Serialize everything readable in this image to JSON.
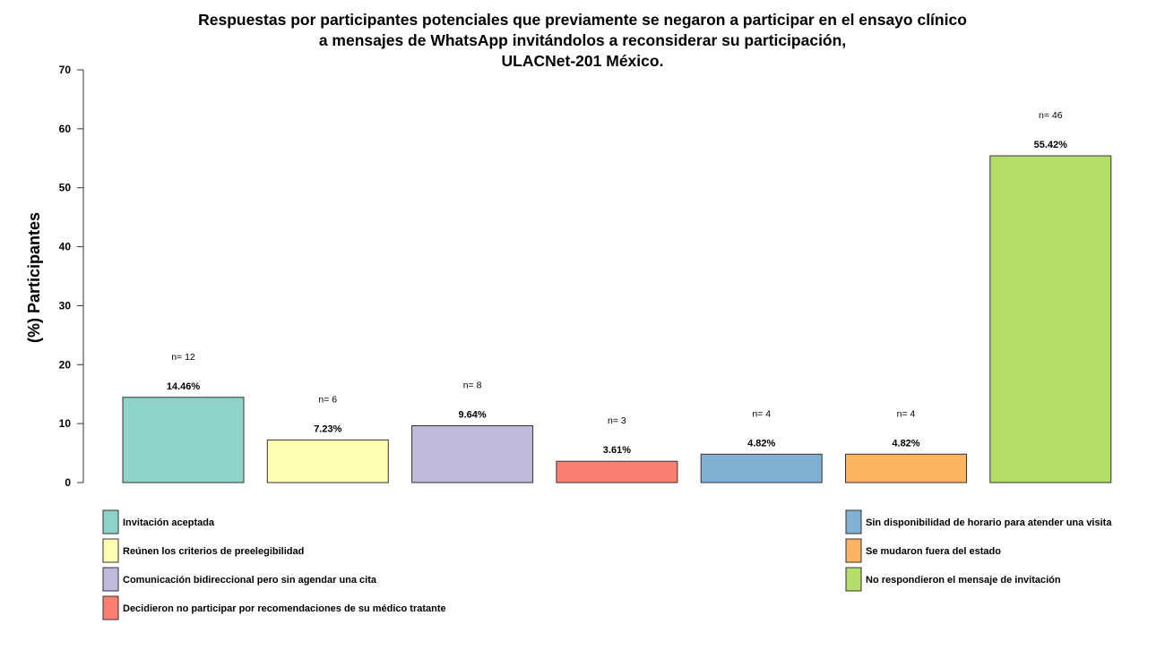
{
  "chart_data": {
    "type": "bar",
    "title": [
      "Respuestas por participantes potenciales que previamente se negaron a participar en el ensayo clínico",
      "a mensajes de WhatsApp invitándolos a reconsiderar su participación,",
      "ULACNet-201 México."
    ],
    "xlabel": "",
    "ylabel": "(%) Participantes",
    "ylim": [
      0,
      70
    ],
    "yticks": [
      "0",
      "10",
      "20",
      "30",
      "40",
      "50",
      "60",
      "70"
    ],
    "categories": [
      "Invitación aceptada",
      "Reúnen los criterios de preelegibilidad",
      "Comunicación bidireccional pero sin agendar una cita",
      "Decidieron no participar por recomendaciones de su médico tratante",
      "Sin disponibilidad de horario para atender una visita",
      "Se mudaron fuera del estado",
      "No respondieron el mensaje de invitación"
    ],
    "values": [
      14.46,
      7.23,
      9.64,
      3.61,
      4.82,
      4.82,
      55.42
    ],
    "value_labels": [
      "14.46%",
      "7.23%",
      "9.64%",
      "3.61%",
      "4.82%",
      "4.82%",
      "55.42%"
    ],
    "n_labels": [
      "n= 12",
      "n= 6",
      "n= 8",
      "n= 3",
      "n= 4",
      "n= 4",
      "n= 46"
    ],
    "colors": [
      "#8dd3c7",
      "#ffffb3",
      "#bebada",
      "#fb8072",
      "#80b1d3",
      "#fdb462",
      "#b3de69"
    ],
    "legend": "bottom, two columns"
  }
}
